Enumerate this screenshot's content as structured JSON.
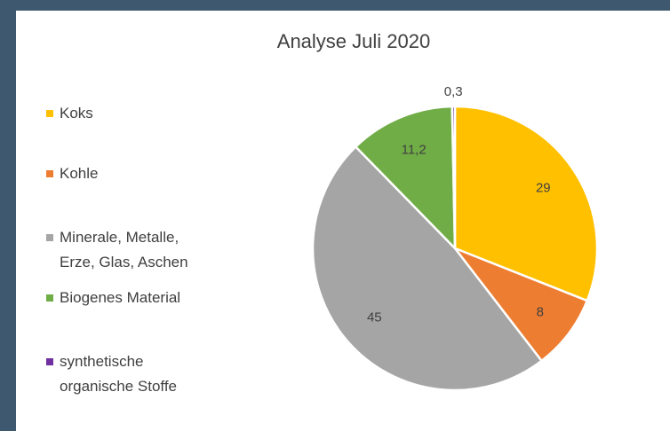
{
  "chart_data": {
    "type": "pie",
    "title": "Analyse Juli 2020",
    "categories": [
      "Koks",
      "Kohle",
      "Minerale, Metalle, Erze, Glas, Aschen",
      "Biogenes Material",
      "synthetische organische Stoffe"
    ],
    "values": [
      29,
      8,
      45,
      11.2,
      0.3
    ],
    "value_labels": [
      "29",
      "8",
      "45",
      "11,2",
      "0,3"
    ],
    "colors": [
      "#ffc000",
      "#ed7d31",
      "#a5a5a5",
      "#70ad47",
      "#7030a0"
    ],
    "legend": "left"
  }
}
